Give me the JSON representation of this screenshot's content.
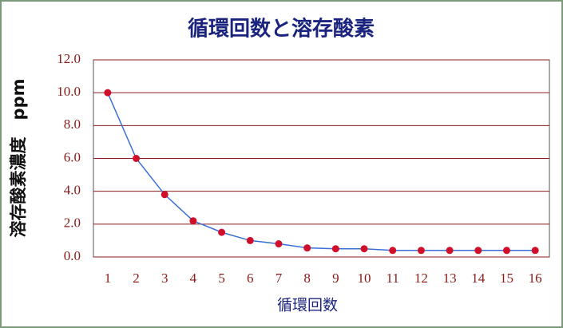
{
  "chart_data": {
    "type": "line",
    "title": "循環回数と溶存酸素",
    "x_label": "循環回数",
    "y_label": "溶存酸素濃度　ppm",
    "categories": [
      "1",
      "2",
      "3",
      "4",
      "5",
      "6",
      "7",
      "8",
      "9",
      "10",
      "11",
      "12",
      "13",
      "14",
      "15",
      "16"
    ],
    "series": [
      {
        "color": "#3a6fd8",
        "marker_color": "#d0102a",
        "values": [
          10.0,
          6.0,
          3.8,
          2.2,
          1.5,
          1.0,
          0.8,
          0.55,
          0.5,
          0.5,
          0.4,
          0.4,
          0.4,
          0.4,
          0.4,
          0.4
        ]
      }
    ],
    "ylim": [
      0,
      12
    ],
    "yticks": [
      {
        "value": 0,
        "label": "0.0"
      },
      {
        "value": 2,
        "label": "2.0"
      },
      {
        "value": 4,
        "label": "4.0"
      },
      {
        "value": 6,
        "label": "6.0"
      },
      {
        "value": 8,
        "label": "8.0"
      },
      {
        "value": 10,
        "label": "10.0"
      },
      {
        "value": 12,
        "label": "12.0"
      }
    ],
    "grid": true,
    "grid_color": "#8b1a1a"
  }
}
